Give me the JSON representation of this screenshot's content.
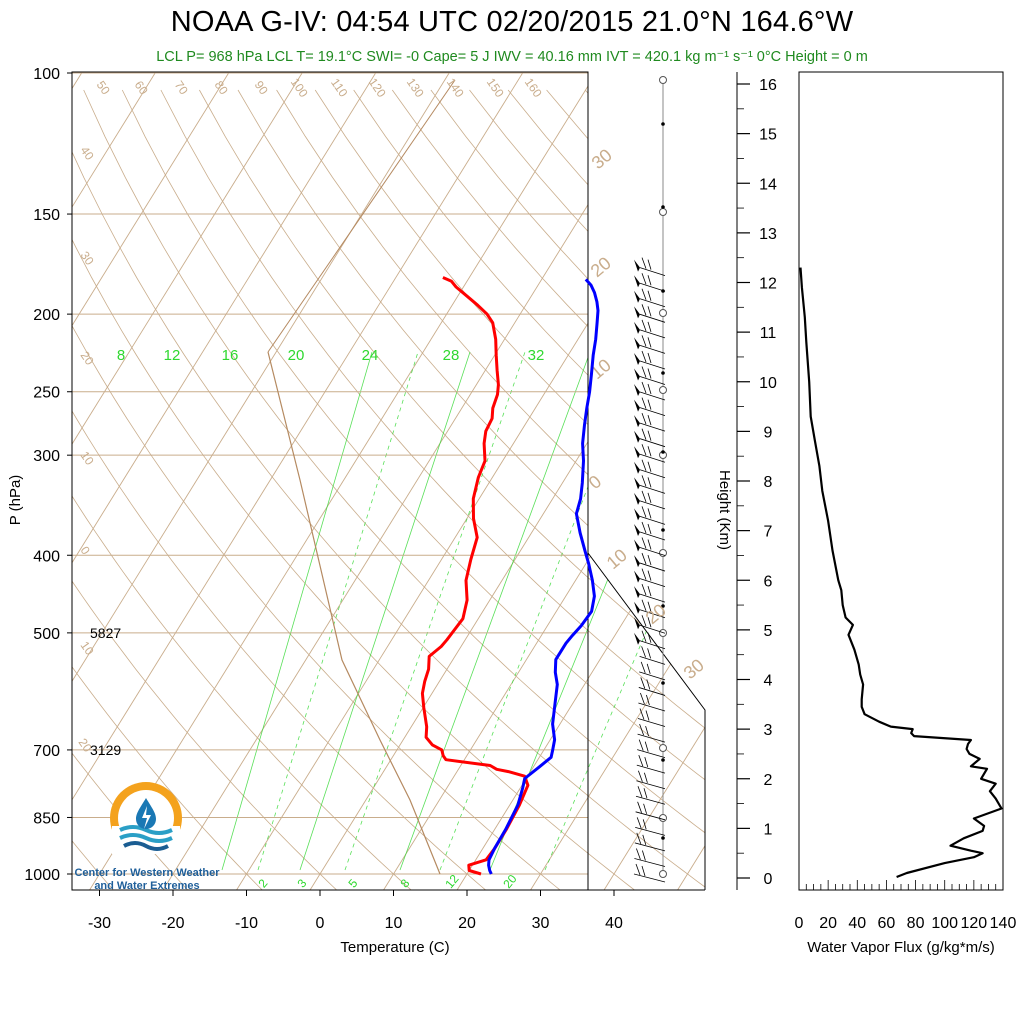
{
  "title": "NOAA G-IV: 04:54 UTC 02/20/2015  21.0°N 164.6°W",
  "subtitle": "LCL P= 968 hPa  LCL T= 19.1°C  SWI= -0  Cape= 5 J  IWV = 40.16 mm  IVT = 420.1 kg m⁻¹ s⁻¹  0°C Height = 0 m",
  "logo": {
    "name": "Center for Western Weather and Water Extremes",
    "line1": "Center for Western Weather",
    "line2": "and Water Extremes"
  },
  "colors": {
    "temperature": "#ff0000",
    "dewpoint": "#0000ff",
    "grid_iso": "#c9ad8c",
    "mixing_ratio": "#2fd82f",
    "subtitle": "#1f8a1f",
    "flux": "#000000"
  },
  "chart_data": [
    {
      "type": "line",
      "title": "Skew-T log-P sounding",
      "xlabel": "Temperature (C)",
      "ylabel": "P (hPa)",
      "xlim": [
        -34,
        48
      ],
      "ylim": [
        1000,
        100
      ],
      "y_scale": "log",
      "xticks": [
        "-30",
        "-20",
        "-10",
        "0",
        "10",
        "20",
        "30",
        "40"
      ],
      "yticks": [
        "100",
        "150",
        "200",
        "250",
        "300",
        "400",
        "500",
        "700",
        "850",
        "1000"
      ],
      "height_labels": [
        {
          "pressure": 500,
          "label": "5827"
        },
        {
          "pressure": 700,
          "label": "3129"
        }
      ],
      "isotherm_labels": [
        "-40",
        "-30",
        "-20",
        "-10",
        "0",
        "10",
        "20",
        "30",
        "40",
        "50",
        "60",
        "70",
        "80",
        "90",
        "100",
        "110",
        "120",
        "130",
        "140",
        "150",
        "160"
      ],
      "mixing_ratio_labels_top": [
        "8",
        "12",
        "16",
        "20",
        "24",
        "28",
        "32"
      ],
      "mixing_ratio_labels_bottom": [
        "2",
        "3",
        "5",
        "8",
        "12",
        "20"
      ],
      "series": [
        {
          "name": "Temperature",
          "color": "#ff0000",
          "points": [
            [
              21.9,
              1000
            ],
            [
              20.0,
              990
            ],
            [
              19.5,
              975
            ],
            [
              21.4,
              960
            ],
            [
              21.6,
              930
            ],
            [
              21.6,
              880
            ],
            [
              21.3,
              820
            ],
            [
              20.8,
              775
            ],
            [
              19.6,
              755
            ],
            [
              17.0,
              745
            ],
            [
              15.2,
              740
            ],
            [
              14.0,
              732
            ],
            [
              7.5,
              720
            ],
            [
              6.8,
              712
            ],
            [
              6.1,
              700
            ],
            [
              4.4,
              690
            ],
            [
              2.9,
              675
            ],
            [
              2.1,
              655
            ],
            [
              0.1,
              620
            ],
            [
              -1.3,
              595
            ],
            [
              -2.0,
              575
            ],
            [
              -2.5,
              555
            ],
            [
              -3.5,
              535
            ],
            [
              -2.7,
              520
            ],
            [
              -2.5,
              510
            ],
            [
              -2.1,
              480
            ],
            [
              -3.1,
              455
            ],
            [
              -4.9,
              430
            ],
            [
              -6.0,
              405
            ],
            [
              -7.0,
              380
            ],
            [
              -9.1,
              360
            ],
            [
              -10.8,
              340
            ],
            [
              -11.9,
              320
            ],
            [
              -12.4,
              305
            ],
            [
              -14.0,
              290
            ],
            [
              -14.8,
              280
            ],
            [
              -15.0,
              270
            ],
            [
              -15.8,
              262
            ],
            [
              -16.3,
              252
            ],
            [
              -17.0,
              245
            ],
            [
              -18.4,
              235
            ],
            [
              -19.8,
              225
            ],
            [
              -21.2,
              215
            ],
            [
              -23.0,
              205
            ],
            [
              -24.5,
              200
            ],
            [
              -26.5,
              195
            ],
            [
              -28.7,
              190
            ],
            [
              -31.0,
              185
            ],
            [
              -32.1,
              182
            ],
            [
              -33.6,
              180
            ]
          ]
        },
        {
          "name": "Dewpoint",
          "color": "#0000ff",
          "points": [
            [
              23.3,
              1000
            ],
            [
              22.8,
              990
            ],
            [
              22.2,
              975
            ],
            [
              21.8,
              960
            ],
            [
              21.6,
              930
            ],
            [
              21.5,
              880
            ],
            [
              21.1,
              820
            ],
            [
              20.3,
              780
            ],
            [
              19.8,
              760
            ],
            [
              20.8,
              735
            ],
            [
              21.6,
              715
            ],
            [
              21.2,
              700
            ],
            [
              20.6,
              680
            ],
            [
              19.0,
              650
            ],
            [
              17.5,
              610
            ],
            [
              16.3,
              580
            ],
            [
              15.0,
              560
            ],
            [
              14.0,
              540
            ],
            [
              14.0,
              515
            ],
            [
              14.2,
              505
            ],
            [
              14.6,
              490
            ],
            [
              14.8,
              470
            ],
            [
              13.9,
              450
            ],
            [
              12.3,
              430
            ],
            [
              10.4,
              410
            ],
            [
              8.8,
              395
            ],
            [
              6.6,
              375
            ],
            [
              4.5,
              355
            ],
            [
              3.8,
              340
            ],
            [
              2.7,
              325
            ],
            [
              1.0,
              305
            ],
            [
              -0.6,
              290
            ],
            [
              -1.9,
              275
            ],
            [
              -3.0,
              262
            ],
            [
              -4.0,
              250
            ],
            [
              -5.2,
              238
            ],
            [
              -6.6,
              225
            ],
            [
              -7.6,
              215
            ],
            [
              -8.8,
              205
            ],
            [
              -9.7,
              198
            ],
            [
              -10.6,
              193
            ],
            [
              -11.7,
              188
            ],
            [
              -12.8,
              184
            ],
            [
              -14.0,
              181
            ]
          ]
        }
      ],
      "wind_barbs": {
        "count": 40,
        "pressure_top": 175,
        "pressure_bottom": 1000,
        "note": "wind barbs shown along right edge of skew-T"
      }
    },
    {
      "type": "line",
      "title": "",
      "xlabel": "Water Vapor Flux (g/kg*m/s)",
      "ylabel": "Height (Km)",
      "xlim": [
        0,
        140
      ],
      "ylim": [
        0,
        16.4
      ],
      "xticks": [
        "0",
        "20",
        "40",
        "60",
        "80",
        "100",
        "120",
        "140"
      ],
      "yticks": [
        "0",
        "1",
        "2",
        "3",
        "4",
        "5",
        "6",
        "7",
        "8",
        "9",
        "10",
        "11",
        "12",
        "13",
        "14",
        "15",
        "16"
      ],
      "series": [
        {
          "name": "",
          "color": "#000000",
          "points": [
            [
              67,
              0.02
            ],
            [
              74,
              0.1
            ],
            [
              100,
              0.3
            ],
            [
              120,
              0.42
            ],
            [
              126,
              0.5
            ],
            [
              118,
              0.55
            ],
            [
              104,
              0.65
            ],
            [
              113,
              0.8
            ],
            [
              126,
              0.95
            ],
            [
              127,
              1.05
            ],
            [
              120,
              1.2
            ],
            [
              139,
              1.4
            ],
            [
              135,
              1.6
            ],
            [
              131,
              1.75
            ],
            [
              135,
              1.9
            ],
            [
              125,
              2.0
            ],
            [
              129,
              2.2
            ],
            [
              118,
              2.25
            ],
            [
              124,
              2.4
            ],
            [
              117,
              2.5
            ],
            [
              115,
              2.6
            ],
            [
              116,
              2.7
            ],
            [
              118,
              2.78
            ],
            [
              79,
              2.86
            ],
            [
              77,
              2.92
            ],
            [
              78,
              3.0
            ],
            [
              63,
              3.05
            ],
            [
              55,
              3.15
            ],
            [
              45,
              3.3
            ],
            [
              43,
              3.45
            ],
            [
              43,
              3.6
            ],
            [
              44,
              3.9
            ],
            [
              42,
              4.1
            ],
            [
              41,
              4.3
            ],
            [
              38,
              4.6
            ],
            [
              34,
              4.9
            ],
            [
              37,
              5.1
            ],
            [
              32,
              5.25
            ],
            [
              30,
              5.5
            ],
            [
              29,
              5.8
            ],
            [
              27,
              6.0
            ],
            [
              23,
              6.6
            ],
            [
              20,
              7.2
            ],
            [
              16,
              7.8
            ],
            [
              14,
              8.3
            ],
            [
              11,
              8.8
            ],
            [
              8,
              9.3
            ],
            [
              7,
              10
            ],
            [
              5,
              10.8
            ],
            [
              4,
              11.3
            ],
            [
              2,
              11.9
            ],
            [
              1,
              12.3
            ]
          ]
        }
      ]
    }
  ]
}
